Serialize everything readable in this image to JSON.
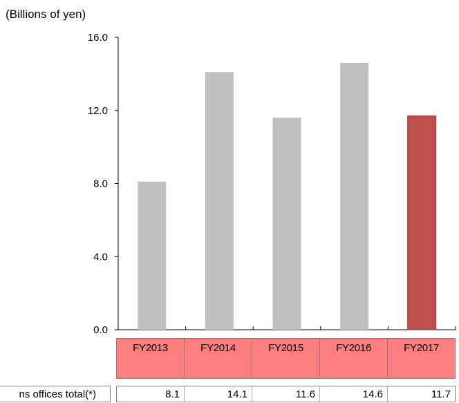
{
  "chart_data": {
    "type": "bar",
    "unit_label": "(Billions of yen)",
    "categories": [
      "FY2013",
      "FY2014",
      "FY2015",
      "FY2016",
      "FY2017"
    ],
    "values": [
      8.1,
      14.1,
      11.6,
      14.6,
      11.7
    ],
    "value_labels": [
      "8.1",
      "14.1",
      "11.6",
      "14.6",
      "11.7"
    ],
    "ylim": [
      0,
      16
    ],
    "y_ticks": [
      "0.0",
      "4.0",
      "8.0",
      "12.0",
      "16.0"
    ],
    "grid": false,
    "colors": {
      "bar": "#c0c0c0",
      "highlight_bar": "#c0504d",
      "highlight_border": "#943634",
      "category_band": "#ff7f7f"
    },
    "highlight_index": 4,
    "table_row_label": "ns offices total(*)"
  }
}
